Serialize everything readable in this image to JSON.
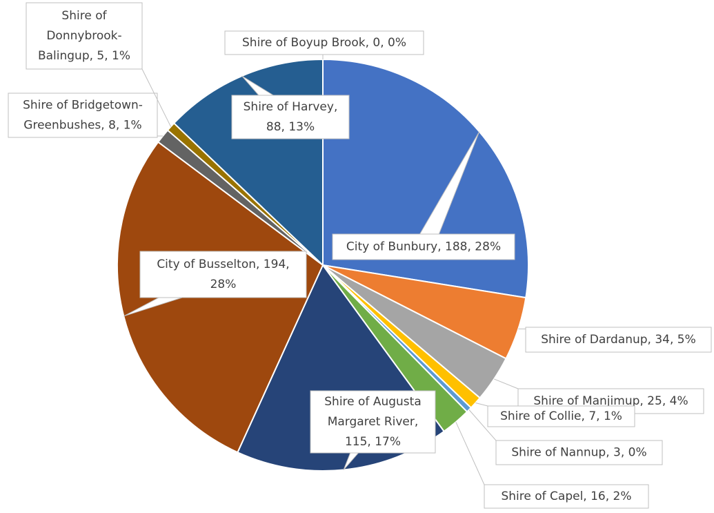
{
  "chart_data": {
    "type": "pie",
    "values": [
      188,
      34,
      25,
      7,
      3,
      16,
      115,
      194,
      8,
      5,
      88,
      0
    ],
    "value_labels": [
      [
        "City of Bunbury, 188, 28%"
      ],
      [
        "Shire of Dardanup, 34, 5%"
      ],
      [
        "Shire of Manjimup, 25, 4%"
      ],
      [
        "Shire of Collie, 7, 1%"
      ],
      [
        "Shire of Nannup, 3, 0%"
      ],
      [
        "Shire of Capel, 16, 2%"
      ],
      [
        "Shire of Augusta",
        "Margaret River,",
        "115, 17%"
      ],
      [
        "City of Busselton, 194,",
        "28%"
      ],
      [
        "Shire of Bridgetown-",
        "Greenbushes, 8, 1%"
      ],
      [
        "Shire of",
        "Donnybrook-",
        "Balingup, 5, 1%"
      ],
      [
        "Shire of Harvey,",
        "88, 13%"
      ],
      [
        "Shire of Boyup Brook, 0, 0%"
      ]
    ],
    "colors": [
      "#4472c4",
      "#ed7d31",
      "#a5a5a5",
      "#ffc000",
      "#5b9bd5",
      "#70ad47",
      "#264478",
      "#9e480e",
      "#636363",
      "#997300",
      "#255e91",
      "#43682b"
    ]
  }
}
